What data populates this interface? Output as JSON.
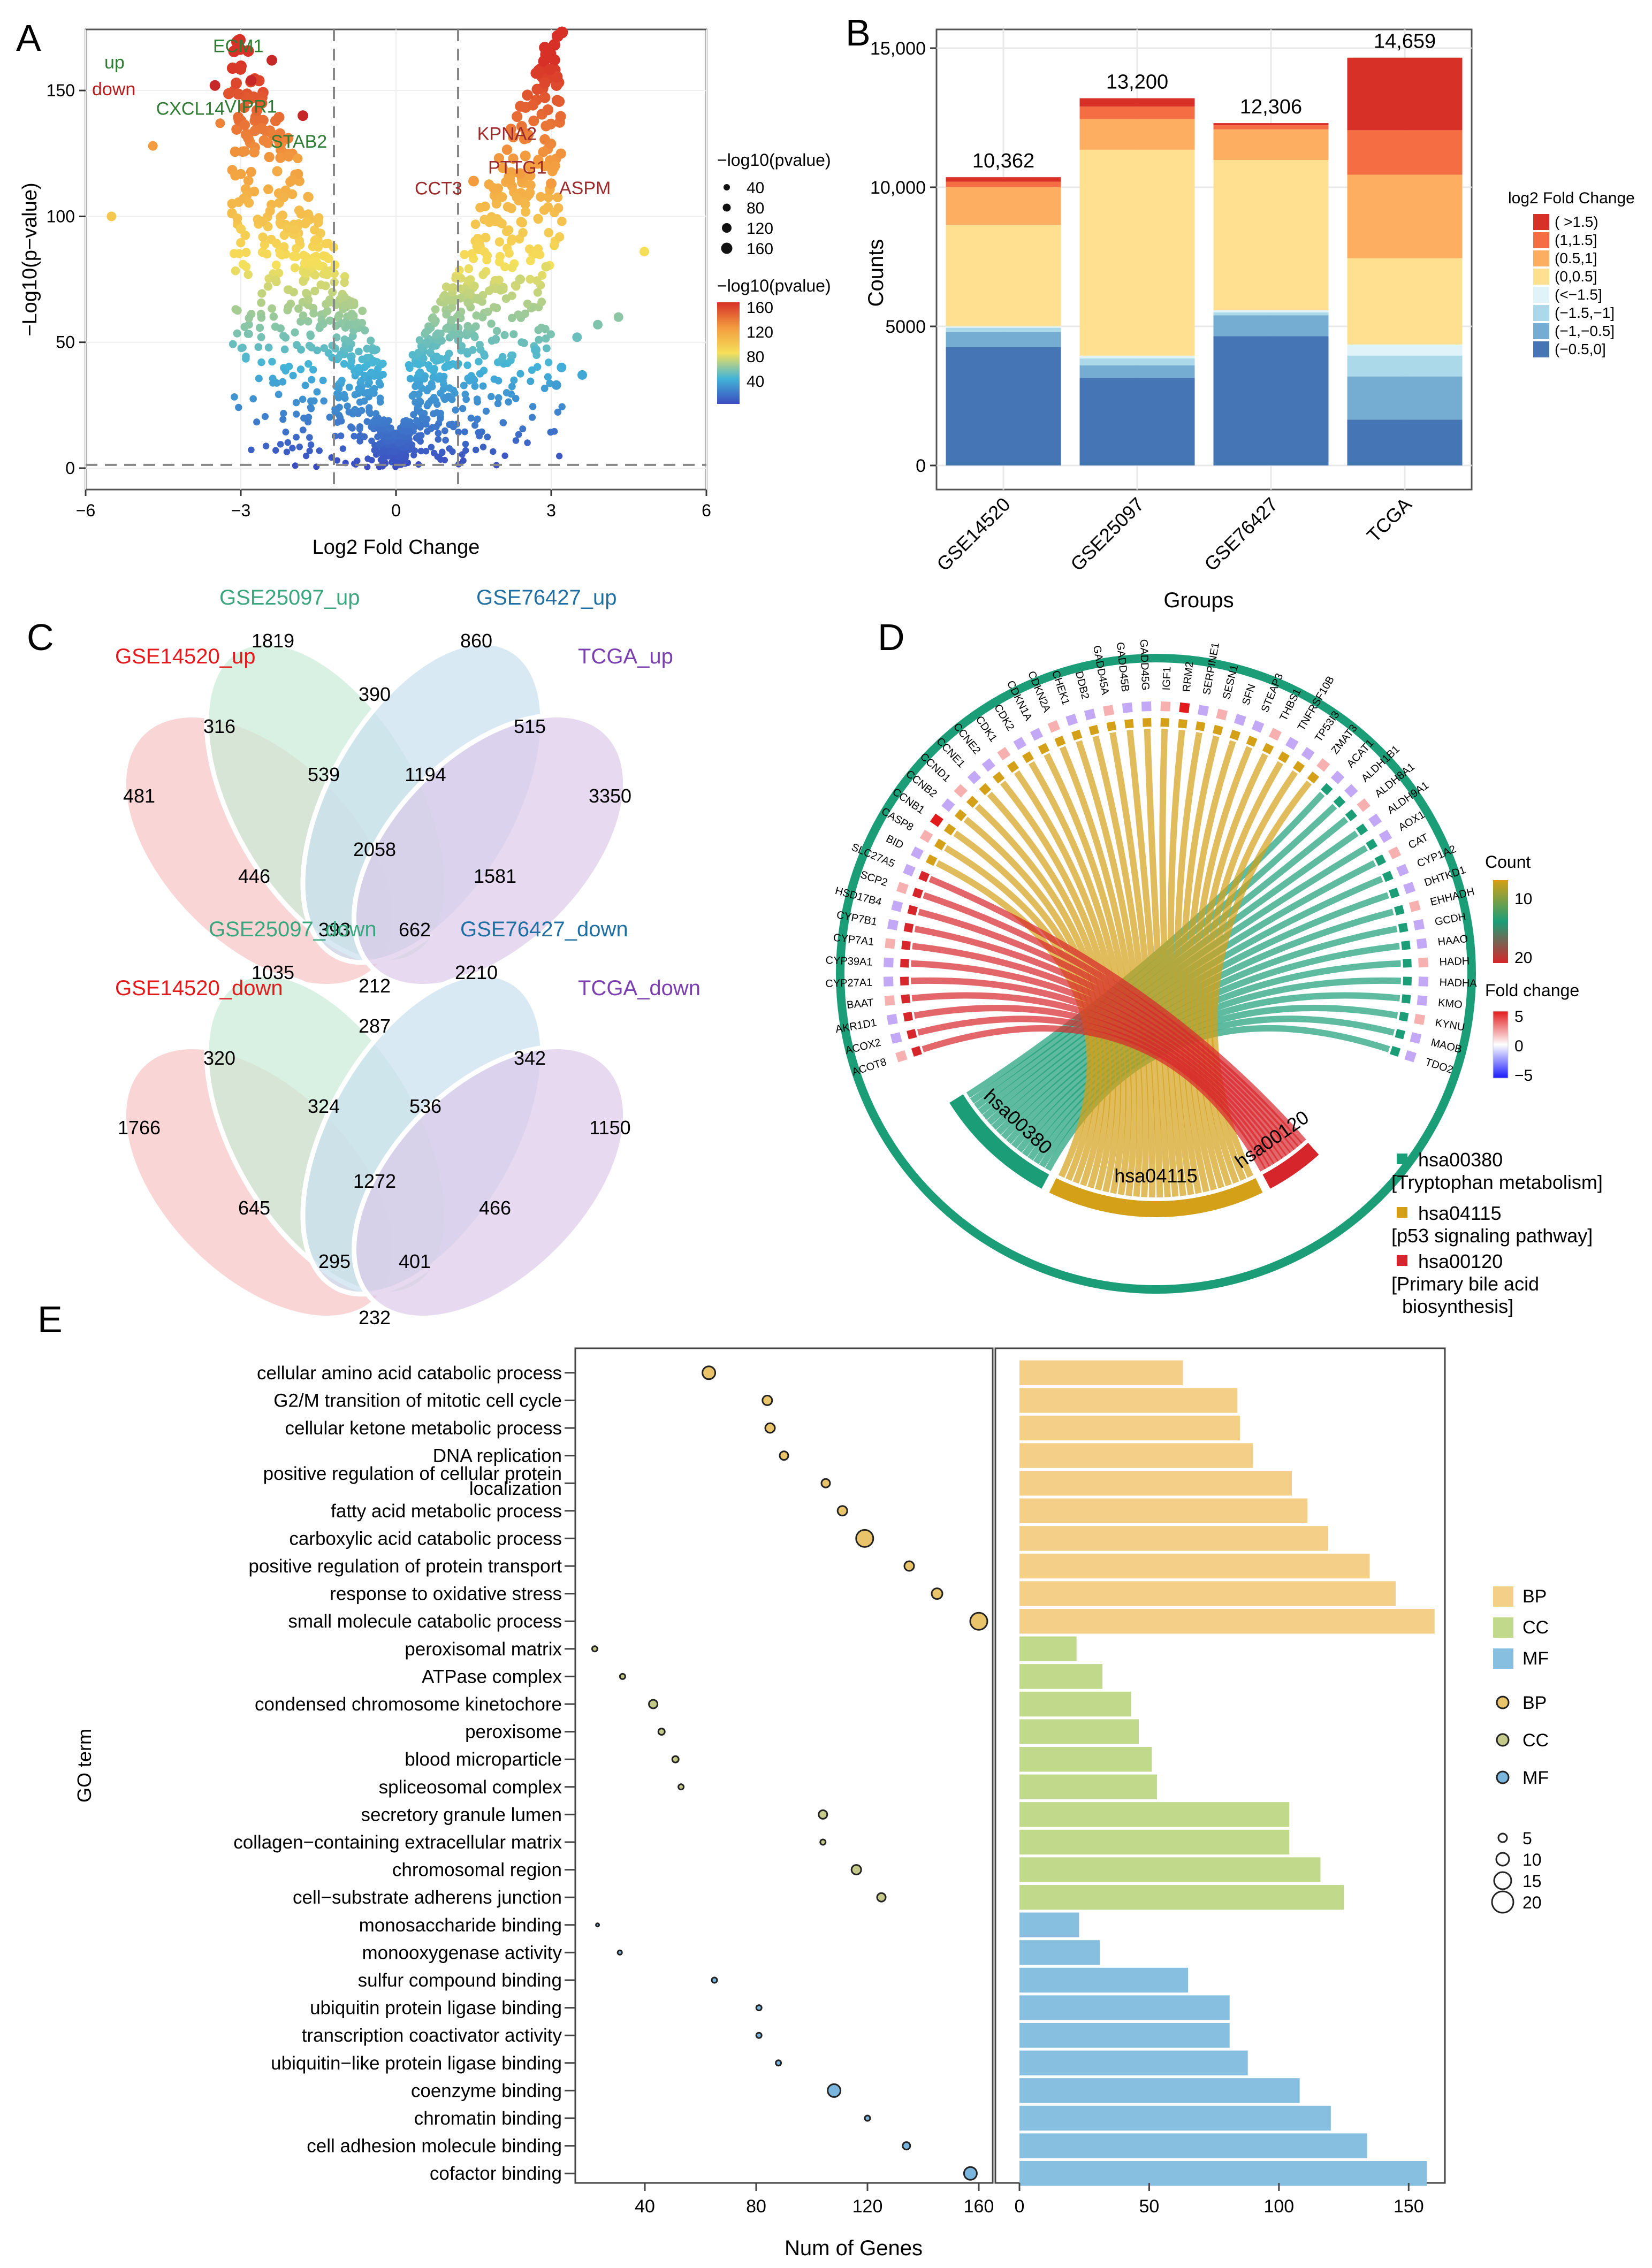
{
  "panel_labels": {
    "a": "A",
    "b": "B",
    "c": "C",
    "d": "D",
    "e": "E"
  },
  "chart_data": [
    {
      "panel": "A",
      "type": "scatter",
      "title": "",
      "xlabel": "Log2 Fold Change",
      "ylabel": "−Log10(p−value)",
      "xlim": [
        -6,
        6
      ],
      "ylim": [
        0,
        170
      ],
      "xticks": [
        "−6",
        "−3",
        "0",
        "3",
        "6"
      ],
      "yticks": [
        "0",
        "50",
        "100",
        "150"
      ],
      "threshold_lines": {
        "x": [
          -1.2,
          1.2
        ],
        "y": [
          1.3
        ]
      },
      "labels_down": [
        {
          "gene": "ECM1",
          "x": -2.4,
          "y": 162
        },
        {
          "gene": "CXCL14",
          "x": -3.5,
          "y": 152
        },
        {
          "gene": "VIPR1",
          "x": -2.8,
          "y": 154
        },
        {
          "gene": "STAB2",
          "x": -1.8,
          "y": 140
        }
      ],
      "labels_up": [
        {
          "gene": "KPNA2",
          "x": 2.5,
          "y": 124
        },
        {
          "gene": "CCT3",
          "x": 1.5,
          "y": 114
        },
        {
          "gene": "PTTG1",
          "x": 2.4,
          "y": 117
        },
        {
          "gene": "ASPM",
          "x": 3.0,
          "y": 113
        }
      ],
      "legend_up": "up",
      "legend_down": "down",
      "size_legend_title": "−log10(pvalue)",
      "size_legend_values": [
        "40",
        "80",
        "120",
        "160"
      ],
      "color_legend_title": "−log10(pvalue)",
      "color_legend_values": [
        "160",
        "120",
        "80",
        "40"
      ],
      "colors": {
        "up": "#2e7d32",
        "down": "#b71c1c",
        "low": "#2b4ea8",
        "mid": "#f5e05a",
        "high": "#d73027"
      }
    },
    {
      "panel": "B",
      "type": "bar",
      "stacked": true,
      "xlabel": "Groups",
      "ylabel": "Counts",
      "ylim": [
        0,
        15000
      ],
      "yticks": [
        "0",
        "5000",
        "10,000",
        "15,000"
      ],
      "categories": [
        "GSE14520",
        "GSE25097",
        "GSE76427",
        "TCGA"
      ],
      "totals": [
        "10,362",
        "13,200",
        "12,306",
        "14,659"
      ],
      "legend_title": "log2 Fold Change",
      "series": [
        {
          "name": "(−0.5,0]",
          "color": "#4575b4",
          "values": [
            4250,
            3150,
            4650,
            1650
          ]
        },
        {
          "name": "(−1,−0.5]",
          "color": "#74add1",
          "values": [
            550,
            450,
            750,
            1550
          ]
        },
        {
          "name": "(−1.5,−1]",
          "color": "#abd9e9",
          "values": [
            150,
            250,
            100,
            750
          ]
        },
        {
          "name": "(<−1.5]",
          "color": "#e0f3f8",
          "values": [
            50,
            100,
            80,
            400
          ]
        },
        {
          "name": "(0,0.5]",
          "color": "#fee090",
          "values": [
            3650,
            7400,
            5400,
            3100
          ]
        },
        {
          "name": "(0.5,1]",
          "color": "#fdae61",
          "values": [
            1350,
            1100,
            1100,
            3000
          ]
        },
        {
          "name": "(1,1.5]",
          "color": "#f46d43",
          "values": [
            200,
            450,
            150,
            1600
          ]
        },
        {
          "name": "( >1.5)",
          "color": "#d73027",
          "values": [
            162,
            300,
            76,
            2609
          ]
        }
      ]
    }
  ],
  "venn_up": {
    "sets": [
      "GSE14520_up",
      "GSE25097_up",
      "GSE76427_up",
      "TCGA_up"
    ],
    "colors": [
      "#e31a1c",
      "#3aa67e",
      "#1f6fa3",
      "#7b3fb0"
    ],
    "regions": [
      "481",
      "1819",
      "860",
      "3350",
      "316",
      "390",
      "515",
      "539",
      "1194",
      "446",
      "2058",
      "1581",
      "393",
      "662",
      "212"
    ]
  },
  "venn_down": {
    "sets": [
      "GSE14520_down",
      "GSE25097_down",
      "GSE76427_down",
      "TCGA_down"
    ],
    "colors": [
      "#e31a1c",
      "#3aa67e",
      "#1f6fa3",
      "#7b3fb0"
    ],
    "regions": [
      "1766",
      "1035",
      "2210",
      "1150",
      "320",
      "287",
      "342",
      "324",
      "536",
      "645",
      "1272",
      "466",
      "295",
      "401",
      "232"
    ]
  },
  "chord": {
    "genes": [
      "ACOT8",
      "ACOX2",
      "AKR1D1",
      "BAAT",
      "CYP27A1",
      "CYP39A1",
      "CYP7A1",
      "CYP7B1",
      "HSD17B4",
      "SCP2",
      "SLC27A5",
      "BID",
      "CASP8",
      "CCNB1",
      "CCNB2",
      "CCND1",
      "CCNE1",
      "CCNE2",
      "CDK1",
      "CDK2",
      "CDKN1A",
      "CDKN2A",
      "CHEK1",
      "DDB2",
      "GADD45A",
      "GADD45B",
      "GADD45G",
      "IGF1",
      "RRM2",
      "SERPINE1",
      "SESN1",
      "SFN",
      "STEAP3",
      "THBS1",
      "TNFRSF10B",
      "TP53I3",
      "ZMAT3",
      "ACAT1",
      "ALDH1B1",
      "ALDH8A1",
      "ALDH9A1",
      "AOX1",
      "CAT",
      "CYP1A2",
      "DHTKD1",
      "EHHADH",
      "GCDH",
      "HAAO",
      "HADH",
      "HADHA",
      "KMO",
      "KYNU",
      "MAOB",
      "TDO2"
    ],
    "pathways": [
      {
        "id": "hsa00380",
        "name": "[Tryptophan metabolism]",
        "color": "#1b9e77"
      },
      {
        "id": "hsa04115",
        "name": "[p53 signaling pathway]",
        "color": "#d4a017"
      },
      {
        "id": "hsa00120",
        "name": "[Primary bile acid biosynthesis]",
        "color": "#d7262b"
      }
    ],
    "count_legend_title": "Count",
    "count_legend_values": [
      "10",
      "20"
    ],
    "fold_legend_title": "Fold change",
    "fold_legend_values": [
      "5",
      "0",
      "−5"
    ],
    "legend_name_lines": [
      [
        "[Tryptophan metabolism]"
      ],
      [
        "[p53 signaling pathway]"
      ],
      [
        "[Primary bile acid",
        "biosynthesis]"
      ]
    ]
  },
  "go": {
    "ylabel": "GO term",
    "xlabel": "Num of Genes",
    "terms": [
      {
        "label": "cellular amino acid catabolic process",
        "cat": "BP",
        "n": 63,
        "size": 12
      },
      {
        "label": "G2/M transition of mitotic cell cycle",
        "cat": "BP",
        "n": 84,
        "size": 9
      },
      {
        "label": "cellular ketone metabolic process",
        "cat": "BP",
        "n": 85,
        "size": 9
      },
      {
        "label": "DNA replication",
        "cat": "BP",
        "n": 90,
        "size": 8
      },
      {
        "label": "positive regulation of cellular protein|localization",
        "cat": "BP",
        "n": 105,
        "size": 8
      },
      {
        "label": "fatty acid metabolic process",
        "cat": "BP",
        "n": 111,
        "size": 9
      },
      {
        "label": "carboxylic acid catabolic process",
        "cat": "BP",
        "n": 119,
        "size": 16
      },
      {
        "label": "positive regulation of protein transport",
        "cat": "BP",
        "n": 135,
        "size": 9
      },
      {
        "label": "response to oxidative stress",
        "cat": "BP",
        "n": 145,
        "size": 10
      },
      {
        "label": "small molecule catabolic process",
        "cat": "BP",
        "n": 160,
        "size": 16
      },
      {
        "label": "peroxisomal matrix",
        "cat": "CC",
        "n": 22,
        "size": 5
      },
      {
        "label": "ATPase complex",
        "cat": "CC",
        "n": 32,
        "size": 5
      },
      {
        "label": "condensed chromosome kinetochore",
        "cat": "CC",
        "n": 43,
        "size": 8
      },
      {
        "label": "peroxisome",
        "cat": "CC",
        "n": 46,
        "size": 6
      },
      {
        "label": "blood microparticle",
        "cat": "CC",
        "n": 51,
        "size": 6
      },
      {
        "label": "spliceosomal complex",
        "cat": "CC",
        "n": 53,
        "size": 5
      },
      {
        "label": "secretory granule lumen",
        "cat": "CC",
        "n": 104,
        "size": 8
      },
      {
        "label": "collagen−containing extracellular matrix",
        "cat": "CC",
        "n": 104,
        "size": 5
      },
      {
        "label": "chromosomal region",
        "cat": "CC",
        "n": 116,
        "size": 9
      },
      {
        "label": "cell−substrate adherens junction",
        "cat": "CC",
        "n": 125,
        "size": 8
      },
      {
        "label": "monosaccharide binding",
        "cat": "MF",
        "n": 23,
        "size": 3
      },
      {
        "label": "monooxygenase activity",
        "cat": "MF",
        "n": 31,
        "size": 4
      },
      {
        "label": "sulfur compound binding",
        "cat": "MF",
        "n": 65,
        "size": 5
      },
      {
        "label": "ubiquitin protein ligase binding",
        "cat": "MF",
        "n": 81,
        "size": 5
      },
      {
        "label": "transcription coactivator activity",
        "cat": "MF",
        "n": 81,
        "size": 5
      },
      {
        "label": "ubiquitin−like protein ligase binding",
        "cat": "MF",
        "n": 88,
        "size": 5
      },
      {
        "label": "coenzyme binding",
        "cat": "MF",
        "n": 108,
        "size": 12
      },
      {
        "label": "chromatin binding",
        "cat": "MF",
        "n": 120,
        "size": 5
      },
      {
        "label": "cell adhesion molecule binding",
        "cat": "MF",
        "n": 134,
        "size": 7
      },
      {
        "label": "cofactor binding",
        "cat": "MF",
        "n": 157,
        "size": 12
      }
    ],
    "dot_xticks": [
      "40",
      "80",
      "120",
      "160"
    ],
    "bar_xticks": [
      "0",
      "50",
      "100",
      "150"
    ],
    "categories": [
      {
        "name": "BP",
        "bar": "#f3cf87",
        "dot": "#e9c46a"
      },
      {
        "name": "CC",
        "bar": "#c1d98a",
        "dot": "#c4c98a"
      },
      {
        "name": "MF",
        "bar": "#87bfe0",
        "dot": "#7ab5de"
      }
    ],
    "size_legend": [
      "5",
      "10",
      "15",
      "20"
    ]
  }
}
